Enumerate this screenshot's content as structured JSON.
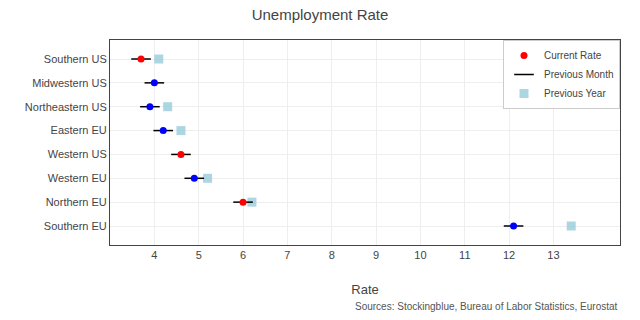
{
  "chart_data": {
    "type": "dot",
    "title": "Unemployment Rate",
    "x_label": "Rate",
    "annotations": [
      "Sources: Stockingblue, Bureau of Labor Statistics, Eurostat"
    ],
    "categories": [
      "Southern US",
      "Midwestern US",
      "Northeastern US",
      "Eastern EU",
      "Western US",
      "Western EU",
      "Northern EU",
      "Southern EU"
    ],
    "series": [
      {
        "name": "Current Rate",
        "marker": "circle",
        "colors": [
          "red",
          "blue",
          "blue",
          "blue",
          "red",
          "blue",
          "red",
          "blue"
        ],
        "values": [
          3.7,
          4.0,
          3.9,
          4.2,
          4.6,
          4.9,
          6.0,
          12.1
        ]
      },
      {
        "name": "Previous Month",
        "marker": "line-ew",
        "color": "black",
        "values": [
          3.7,
          4.0,
          3.9,
          4.2,
          4.6,
          4.9,
          6.0,
          12.1
        ]
      },
      {
        "name": "Previous Year",
        "marker": "square",
        "color": "#90c8d8",
        "values": [
          4.1,
          null,
          4.3,
          4.6,
          null,
          5.2,
          6.2,
          13.4
        ]
      }
    ],
    "xlim": [
      3.0,
      14.5
    ],
    "xticks": [
      4,
      5,
      6,
      7,
      8,
      9,
      10,
      11,
      12,
      13
    ],
    "grid": true,
    "legend": "upper right"
  }
}
